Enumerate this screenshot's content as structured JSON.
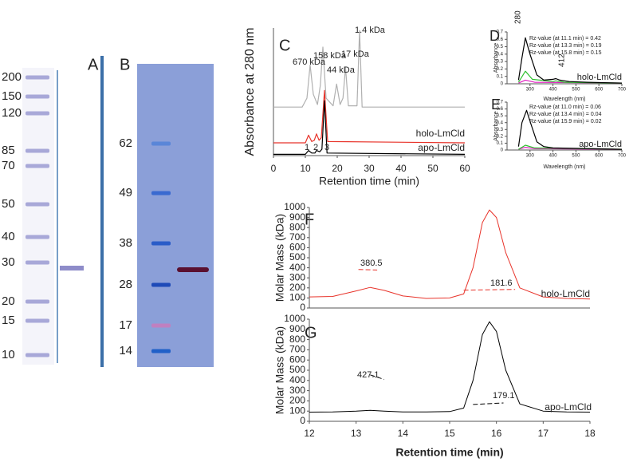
{
  "gels": [
    {
      "label": "A",
      "markers": [
        200,
        150,
        120,
        85,
        70,
        50,
        40,
        30,
        20,
        15,
        10
      ]
    },
    {
      "label": "B",
      "markers": [
        62,
        49,
        38,
        28,
        17,
        14
      ]
    }
  ],
  "chart_data": [
    {
      "type": "line",
      "label": "C",
      "ylabel": "Absorbance at 280 nm",
      "xlabel": "Retention time (min)",
      "xlim": [
        0,
        60
      ],
      "xticks": [
        0,
        10,
        20,
        30,
        40,
        50,
        60
      ],
      "ylim": [
        0,
        1
      ],
      "series": [
        {
          "color": "#b0b0b0",
          "x": [
            0,
            9,
            10.5,
            11.5,
            12.5,
            13.8,
            14.7,
            15.5,
            16.5,
            18.7,
            19.8,
            20.9,
            21.8,
            22.6,
            23.5,
            26.2,
            27,
            27.8,
            60
          ],
          "values": [
            0.38,
            0.38,
            0.45,
            0.71,
            0.48,
            0.4,
            0.55,
            0.85,
            0.45,
            0.39,
            0.56,
            0.4,
            0.45,
            0.69,
            0.39,
            0.39,
            0.98,
            0.38,
            0.38
          ]
        },
        {
          "name": "holo-LmCld",
          "color": "#e8332a",
          "x": [
            0,
            10,
            11,
            12,
            12.8,
            13.5,
            14.3,
            15,
            16,
            17,
            60
          ],
          "values": [
            0.1,
            0.1,
            0.16,
            0.11,
            0.12,
            0.17,
            0.12,
            0.14,
            0.51,
            0.11,
            0.1
          ]
        },
        {
          "name": "apo-LmCld",
          "color": "#000000",
          "x": [
            0,
            10,
            11,
            12,
            13,
            13.5,
            14.5,
            15.2,
            16,
            16.8,
            60
          ],
          "values": [
            0.01,
            0.01,
            0.04,
            0.02,
            0.02,
            0.04,
            0.03,
            0.05,
            0.43,
            0.02,
            0.01
          ]
        }
      ],
      "annotations": [
        "670 kDa",
        "158 kDa",
        "44 kDa",
        "17 kDa",
        "1.4 kDa"
      ],
      "peak_labels": [
        {
          "text": "1",
          "color": "#e020c0"
        },
        {
          "text": "2",
          "color": "#30c030"
        },
        {
          "text": "3",
          "color": "#000000"
        }
      ]
    },
    {
      "type": "line",
      "label": "D",
      "ylabel": "Absorbance",
      "xlabel": "Wavelength (nm)",
      "axis_color": "#e8332a",
      "xlim": [
        200,
        700
      ],
      "xticks": [
        300,
        400,
        500,
        600,
        700
      ],
      "ylim": [
        0,
        0.7
      ],
      "yticks": [
        0,
        0.1,
        0.2,
        0.3,
        0.4,
        0.5,
        0.6,
        0.7
      ],
      "series": [
        {
          "color": "#e020c0",
          "x": [
            250,
            280,
            320,
            700
          ],
          "values": [
            0.01,
            0.05,
            0.02,
            0.01
          ]
        },
        {
          "color": "#30c030",
          "x": [
            250,
            280,
            310,
            400,
            412,
            450,
            700
          ],
          "values": [
            0.02,
            0.17,
            0.06,
            0.03,
            0.04,
            0.02,
            0.01
          ]
        },
        {
          "color": "#000000",
          "x": [
            250,
            265,
            280,
            300,
            330,
            360,
            400,
            412,
            430,
            470,
            550,
            700
          ],
          "values": [
            0.05,
            0.35,
            0.62,
            0.4,
            0.12,
            0.05,
            0.06,
            0.07,
            0.05,
            0.03,
            0.02,
            0.01
          ]
        }
      ],
      "annotations": [
        "280",
        "412"
      ],
      "rz": [
        {
          "text": "Rz-value (at 11.1 min) = 0.42",
          "color": "#e020c0"
        },
        {
          "text": "Rz-value (at 13.3 min) = 0.19",
          "color": "#30c030"
        },
        {
          "text": "Rz-value (at 15.8 min) = 0.15",
          "color": "#000000"
        }
      ],
      "sample": "holo-LmCld",
      "sample_color": "#e8332a"
    },
    {
      "type": "line",
      "label": "E",
      "ylabel": "Absorbance",
      "xlabel": "Wavelength (nm)",
      "axis_color": "#000000",
      "xlim": [
        200,
        700
      ],
      "xticks": [
        300,
        400,
        500,
        600,
        700
      ],
      "ylim": [
        0,
        0.7
      ],
      "yticks": [
        0,
        0.1,
        0.2,
        0.3,
        0.4,
        0.5,
        0.6,
        0.7
      ],
      "series": [
        {
          "color": "#e020c0",
          "x": [
            250,
            280,
            320,
            700
          ],
          "values": [
            0.01,
            0.04,
            0.02,
            0.01
          ]
        },
        {
          "color": "#30c030",
          "x": [
            250,
            280,
            320,
            700
          ],
          "values": [
            0.01,
            0.07,
            0.03,
            0.01
          ]
        },
        {
          "color": "#000000",
          "x": [
            250,
            265,
            285,
            300,
            330,
            360,
            400,
            700
          ],
          "values": [
            0.05,
            0.4,
            0.58,
            0.42,
            0.12,
            0.05,
            0.03,
            0.01
          ]
        }
      ],
      "rz": [
        {
          "text": "Rz-value (at 11.0 min) = 0.06",
          "color": "#e020c0"
        },
        {
          "text": "Rz-value (at 13.4 min) = 0.04",
          "color": "#30c030"
        },
        {
          "text": "Rz-value (at 15.9 min) = 0.02",
          "color": "#000000"
        }
      ],
      "sample": "apo-LmCld",
      "sample_color": "#000000"
    },
    {
      "type": "line",
      "label": "F",
      "ylabel": "Molar Mass (kDa)",
      "xlim": [
        12,
        18
      ],
      "ylim": [
        0,
        1000
      ],
      "yticks": [
        0,
        100,
        200,
        300,
        400,
        500,
        600,
        700,
        800,
        900,
        1000
      ],
      "series": [
        {
          "name": "holo-LmCld",
          "color": "#e8332a",
          "x": [
            12,
            12.5,
            13,
            13.3,
            13.6,
            14,
            14.5,
            15,
            15.3,
            15.5,
            15.7,
            15.85,
            16,
            16.2,
            16.5,
            17,
            17.5,
            18
          ],
          "values": [
            110,
            115,
            170,
            205,
            175,
            120,
            95,
            100,
            140,
            400,
            850,
            975,
            900,
            550,
            200,
            110,
            95,
            90
          ]
        },
        {
          "color": "#e8332a",
          "dash": true,
          "x": [
            13.05,
            13.45
          ],
          "values": [
            383,
            378
          ]
        },
        {
          "color": "#e8332a",
          "dash": true,
          "x": [
            15.3,
            16.4
          ],
          "values": [
            178,
            185
          ]
        }
      ],
      "annotations": [
        "380.5",
        "181.6"
      ]
    },
    {
      "type": "line",
      "label": "G",
      "ylabel": "Molar Mass (kDa)",
      "xlabel": "Retention time (min)",
      "xlim": [
        12,
        18
      ],
      "xticks": [
        12,
        13,
        14,
        15,
        16,
        17,
        18
      ],
      "ylim": [
        0,
        1000
      ],
      "yticks": [
        0,
        100,
        200,
        300,
        400,
        500,
        600,
        700,
        800,
        900,
        1000
      ],
      "series": [
        {
          "name": "apo-LmCld",
          "color": "#000000",
          "x": [
            12,
            12.5,
            13,
            13.3,
            13.6,
            14,
            14.5,
            15,
            15.3,
            15.5,
            15.7,
            15.85,
            16,
            16.2,
            16.5,
            17,
            17.5,
            18
          ],
          "values": [
            90,
            92,
            100,
            108,
            100,
            92,
            92,
            95,
            130,
            400,
            850,
            975,
            880,
            500,
            170,
            100,
            92,
            90
          ]
        },
        {
          "color": "#000000",
          "dash": true,
          "x": [
            13.3,
            13.6
          ],
          "values": [
            455,
            410
          ]
        },
        {
          "color": "#000000",
          "dash": true,
          "x": [
            15.5,
            16.15
          ],
          "values": [
            165,
            180
          ]
        }
      ],
      "annotations": [
        "427.1",
        "179.1"
      ]
    }
  ]
}
